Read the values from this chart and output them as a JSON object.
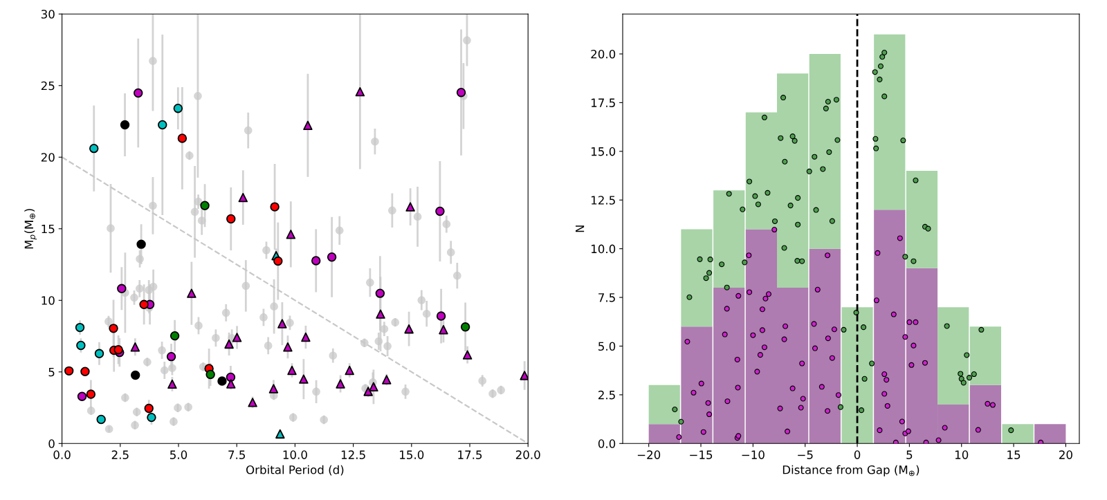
{
  "chart_data": [
    {
      "type": "scatter",
      "xlabel": "Orbital Period (d)",
      "ylabel": "M$_{p}$(M$_{⊕}$)",
      "xlim": [
        0,
        20
      ],
      "ylim": [
        0,
        30
      ],
      "xticks": [
        {
          "value": 0,
          "label": "0.0"
        },
        {
          "value": 2.5,
          "label": "2.5"
        },
        {
          "value": 5,
          "label": "5.0"
        },
        {
          "value": 7.5,
          "label": "7.5"
        },
        {
          "value": 10,
          "label": "10.0"
        },
        {
          "value": 12.5,
          "label": "12.5"
        },
        {
          "value": 15,
          "label": "15.0"
        },
        {
          "value": 17.5,
          "label": "17.5"
        },
        {
          "value": 20,
          "label": "20.0"
        }
      ],
      "yticks": [
        0,
        5,
        10,
        15,
        20,
        25,
        30
      ],
      "grid": false,
      "legend": false,
      "series": [
        {
          "color": "#c8c8c8",
          "marker": "circle",
          "x": [
            3.9,
            5.83,
            7.99,
            5.47,
            3.9,
            2.09,
            5.7,
            5.85,
            6.0,
            3.34,
            2.71,
            3.1,
            3.33,
            3.73,
            3.92,
            3.74,
            2.0,
            5.86,
            6.6,
            7.04,
            7.89,
            8.77,
            8.65,
            9.1,
            8.85,
            7.29,
            4.29,
            4.73,
            4.4,
            3.66,
            6.06,
            2.71,
            1.25,
            2.02,
            3.13,
            3.21,
            4.97,
            5.42,
            4.79,
            9.09,
            9.78,
            9.92,
            17.38,
            17.23,
            13.43,
            14.17,
            15.26,
            11.91,
            16.5,
            16.69,
            16.96,
            13.22,
            15.43,
            15.65,
            14.3,
            13.83,
            13.59,
            13.97,
            12.98,
            11.63,
            10.91,
            13.34,
            13.02,
            14.74,
            18.04,
            18.48,
            18.84,
            11.24
          ],
          "values": [
            26.72,
            24.27,
            21.87,
            20.11,
            16.61,
            15.03,
            16.18,
            16.89,
            15.57,
            12.89,
            10.53,
            10.19,
            10.82,
            10.72,
            10.95,
            9.48,
            8.52,
            8.23,
            7.37,
            9.13,
            11.01,
            13.5,
            8.81,
            9.57,
            6.83,
            7.37,
            6.51,
            5.27,
            5.11,
            5.69,
            5.36,
            3.2,
            2.29,
            1.01,
            1.28,
            2.2,
            2.49,
            2.54,
            1.53,
            3.35,
            8.43,
            1.82,
            28.16,
            24.27,
            21.09,
            16.28,
            15.84,
            14.88,
            15.32,
            13.35,
            11.72,
            11.24,
            10.01,
            9.06,
            8.46,
            8.0,
            7.14,
            6.8,
            7.03,
            6.14,
            3.62,
            4.27,
            3.85,
            3.62,
            4.38,
            3.48,
            3.73,
            1.66
          ],
          "errors": [
            3.5,
            5.7,
            1.25,
            0.3,
            2.0,
            3.1,
            3.2,
            0.5,
            1.0,
            0.6,
            2.8,
            0.5,
            0.6,
            0.7,
            1.2,
            0.4,
            0.4,
            0.6,
            0.6,
            0.6,
            1.8,
            0.6,
            0.6,
            1.9,
            0.6,
            0.6,
            0.6,
            0.5,
            0.6,
            0.3,
            0.3,
            0.3,
            0.3,
            0.2,
            0.3,
            0.3,
            0.3,
            0.3,
            0.3,
            0.3,
            0.5,
            0.3,
            1.8,
            2.3,
            0.9,
            1.2,
            2.1,
            1.0,
            0.6,
            0.8,
            0.9,
            1.0,
            0.7,
            0.9,
            0.3,
            0.5,
            0.6,
            0.7,
            0.3,
            0.5,
            0.8,
            0.7,
            0.3,
            0.5,
            0.4,
            0.3,
            0.3,
            0.3
          ]
        },
        {
          "color": "#00bfbf",
          "marker": "circle",
          "x": [
            1.37,
            4.98,
            4.31,
            0.77,
            0.81,
            1.6,
            1.68,
            3.84
          ],
          "values": [
            20.61,
            23.41,
            22.26,
            8.1,
            6.85,
            6.28,
            1.68,
            1.82
          ],
          "errors": [
            3.0,
            1.47,
            6.3,
            0.5,
            0.5,
            0.8,
            0.3,
            0.5
          ]
        },
        {
          "color": "#00bfbf",
          "marker": "triangle",
          "x": [
            9.19,
            9.36
          ],
          "values": [
            13.12,
            0.67
          ],
          "errors": [
            0.5,
            0.2
          ]
        },
        {
          "color": "#bf00bf",
          "marker": "circle",
          "x": [
            3.27,
            2.56,
            3.77,
            2.47,
            4.69,
            0.86,
            7.24,
            17.13,
            16.22,
            10.9,
            11.58,
            13.65,
            16.27
          ],
          "values": [
            24.48,
            10.82,
            9.71,
            6.36,
            6.07,
            3.29,
            4.63,
            24.52,
            16.22,
            12.77,
            13.02,
            10.49,
            8.9
          ],
          "errors": [
            3.8,
            1.5,
            1.4,
            1.0,
            0.9,
            0.3,
            0.8,
            4.4,
            3.5,
            2.2,
            2.8,
            2.6,
            1.9
          ]
        },
        {
          "color": "#ff0000",
          "marker": "circle",
          "x": [
            5.16,
            7.25,
            9.13,
            9.27,
            3.52,
            2.21,
            2.23,
            2.42,
            0.3,
            0.99,
            1.24,
            3.73,
            6.31
          ],
          "values": [
            21.32,
            15.69,
            16.53,
            12.74,
            9.71,
            8.04,
            6.51,
            6.55,
            5.07,
            5.03,
            3.44,
            2.45,
            5.23
          ],
          "errors": [
            3.57,
            2.2,
            3.0,
            2.7,
            1.4,
            2.0,
            1.5,
            1.0,
            0.3,
            0.3,
            1.0,
            0.6,
            1.4
          ]
        },
        {
          "color": "#000000",
          "marker": "circle",
          "x": [
            2.7,
            3.4,
            3.15,
            6.87
          ],
          "values": [
            22.26,
            13.92,
            4.77,
            4.36
          ],
          "errors": [
            2.2,
            1.4,
            0.3,
            0.3
          ]
        },
        {
          "color": "#008000",
          "marker": "circle",
          "x": [
            6.13,
            4.84,
            6.37,
            17.31
          ],
          "values": [
            16.62,
            7.52,
            4.82,
            8.14
          ],
          "errors": [
            1.5,
            1.1,
            0.8,
            1.7
          ]
        },
        {
          "color": "#bf00bf",
          "marker": "triangle",
          "x": [
            7.77,
            9.82,
            5.56,
            3.14,
            4.73,
            7.17,
            7.51,
            7.25,
            8.18,
            9.08,
            9.45,
            9.69,
            9.87,
            10.37,
            10.46,
            10.55,
            12.79,
            11.95,
            12.34,
            13.14,
            13.37,
            13.93,
            13.67,
            14.89,
            14.95,
            16.37,
            17.4,
            19.85
          ],
          "values": [
            17.18,
            14.61,
            10.49,
            6.74,
            4.15,
            6.95,
            7.41,
            4.17,
            2.87,
            3.83,
            8.37,
            6.74,
            5.11,
            4.5,
            7.43,
            22.22,
            24.57,
            4.17,
            5.11,
            3.64,
            3.96,
            4.46,
            9.04,
            8.0,
            16.53,
            7.95,
            6.19,
            4.75
          ],
          "errors": [
            1.9,
            2.3,
            2.2,
            0.6,
            0.5,
            0.8,
            0.8,
            0.4,
            0.4,
            0.6,
            1.5,
            0.8,
            0.5,
            1.4,
            0.8,
            3.6,
            5.4,
            0.6,
            0.5,
            0.4,
            1.2,
            0.4,
            2.6,
            1.2,
            1.3,
            0.9,
            0.6,
            1.0
          ]
        },
        {
          "type": "line",
          "color": "#c8c8c8",
          "line_style": "dashed",
          "marker": "none",
          "x": [
            0,
            20
          ],
          "values": [
            20,
            0
          ]
        }
      ]
    },
    {
      "type": "bar",
      "xlabel": "Distance from Gap (M$_{⊕}$)",
      "ylabel": "N",
      "xlim": [
        -22.5,
        21.3
      ],
      "ylim": [
        0,
        22.05
      ],
      "xticks": [
        {
          "value": -20,
          "label": "−20"
        },
        {
          "value": -15,
          "label": "−15"
        },
        {
          "value": -10,
          "label": "−10"
        },
        {
          "value": -5,
          "label": "−5"
        },
        0,
        5,
        10,
        15,
        20
      ],
      "yticks": [
        {
          "value": 0,
          "label": "0.0"
        },
        {
          "value": 2.5,
          "label": "2.5"
        },
        {
          "value": 5,
          "label": "5.0"
        },
        {
          "value": 7.5,
          "label": "7.5"
        },
        {
          "value": 10,
          "label": "10.0"
        },
        {
          "value": 12.5,
          "label": "12.5"
        },
        {
          "value": 15,
          "label": "15.0"
        },
        {
          "value": 17.5,
          "label": "17.5"
        },
        {
          "value": 20,
          "label": "20.0"
        }
      ],
      "grid": false,
      "legend": false,
      "stacked": true,
      "x": [
        -18.5,
        -15.4,
        -12.3,
        -9.2,
        -6.2,
        -3.1,
        0,
        3.1,
        6.2,
        9.2,
        12.3,
        15.4,
        18.5
      ],
      "series": [
        {
          "color": "#ae7cb0",
          "values": [
            1,
            6,
            8,
            11,
            8,
            10,
            0,
            12,
            9,
            2,
            3,
            0,
            1
          ]
        },
        {
          "color": "#a8d4a8",
          "values": [
            2,
            5,
            5,
            6,
            11,
            10,
            7,
            9,
            5,
            5,
            3,
            1,
            0
          ]
        },
        {
          "type": "scatter",
          "color": "#4f9f4f",
          "marker": "circle",
          "x": [
            -17.5,
            -16.9,
            -16.1,
            -15.1,
            -14.1,
            -14.2,
            -14.5,
            -13.0,
            -12.5,
            -12.3,
            -11.0,
            -10.8,
            -10.35,
            -9.8,
            -9.5,
            -8.9,
            -8.6,
            -7.9,
            -7.35,
            -7.1,
            -6.95,
            -7.0,
            -6.4,
            -6.2,
            -6.0,
            -5.7,
            -5.7,
            -5.75,
            -5.3,
            -4.6,
            -4.1,
            -3.95,
            -3.3,
            -3.0,
            -2.8,
            -2.7,
            -2.0,
            -1.9,
            -2.4,
            -1.6,
            -1.3,
            -0.1,
            0.4,
            0.6,
            0.7,
            1.4,
            1.7,
            1.75,
            1.8,
            2.15,
            2.25,
            2.4,
            2.6,
            2.6,
            4.4,
            4.6,
            5.4,
            5.6,
            6.5,
            6.8,
            8.6,
            9.9,
            10.0,
            10.2,
            10.5,
            10.75,
            11.2,
            11.9,
            14.75
          ],
          "values": [
            1.75,
            1.12,
            7.51,
            9.46,
            9.45,
            8.76,
            8.49,
            9.2,
            8.01,
            12.82,
            12.02,
            9.3,
            13.45,
            12.7,
            12.28,
            16.74,
            12.87,
            11.41,
            15.68,
            17.76,
            14.47,
            10.04,
            12.22,
            15.77,
            15.54,
            12.61,
            11.24,
            9.38,
            9.36,
            13.97,
            14.72,
            11.99,
            14.09,
            17.2,
            17.55,
            14.96,
            17.65,
            15.58,
            11.42,
            1.87,
            5.84,
            6.72,
            1.71,
            5.97,
            3.32,
            4.11,
            19.07,
            15.64,
            15.15,
            18.69,
            19.37,
            19.85,
            20.07,
            17.82,
            15.56,
            9.59,
            9.36,
            13.51,
            11.13,
            11.03,
            6.03,
            3.58,
            3.32,
            3.12,
            4.54,
            3.38,
            3.56,
            5.84,
            0.68
          ]
        },
        {
          "type": "scatter",
          "color": "#cc22cc",
          "marker": "circle",
          "x": [
            -17.1,
            -16.3,
            -15.7,
            -14.95,
            -14.3,
            -14.2,
            -14.75,
            -12.7,
            -12.5,
            -12.45,
            -11.5,
            -11.45,
            -11.5,
            -11.4,
            -11.4,
            -10.4,
            -10.35,
            -10.0,
            -9.6,
            -9.3,
            -9.1,
            -9.1,
            -8.9,
            -8.8,
            -8.5,
            -7.95,
            -7.4,
            -7.0,
            -6.9,
            -6.7,
            -6.2,
            -5.4,
            -5.3,
            -5.2,
            -4.15,
            -4.05,
            -3.8,
            -3.4,
            -2.85,
            -2.85,
            -2.8,
            -1.8,
            -2.2,
            -2.4,
            1.85,
            1.95,
            2.15,
            2.6,
            2.8,
            2.6,
            2.9,
            3.5,
            3.7,
            4.1,
            4.3,
            4.6,
            4.6,
            4.9,
            5.0,
            5.2,
            5.4,
            5.6,
            6.5,
            6.6,
            7.8,
            8.4,
            11.6,
            12.5,
            13.0,
            17.6
          ],
          "values": [
            0.33,
            5.23,
            2.61,
            3.08,
            2.08,
            1.5,
            0.59,
            5.6,
            6.92,
            2.17,
            4.31,
            2.87,
            0.29,
            0.39,
            7.58,
            9.66,
            7.77,
            5.56,
            3.69,
            4.55,
            6.89,
            5.82,
            4.94,
            7.44,
            7.67,
            10.98,
            1.8,
            5.35,
            6.02,
            0.62,
            2.83,
            1.84,
            4.11,
            2.3,
            6.14,
            4.89,
            7.9,
            2.91,
            9.66,
            1.67,
            5.4,
            2.49,
            5.86,
            4.39,
            7.35,
            9.78,
            0.68,
            3.56,
            3.27,
            2.55,
            1.93,
            6.63,
            0.05,
            10.54,
            1.13,
            5.47,
            0.52,
            0.63,
            6.23,
            4.03,
            5.03,
            6.23,
            4.14,
            0.05,
            0.17,
            0.81,
            0.7,
            2.04,
            1.98,
            0.05
          ]
        }
      ],
      "ref_lines": [
        {
          "axis": "x",
          "value": 0,
          "color": "#000000",
          "line_style": "dashed"
        }
      ]
    }
  ]
}
